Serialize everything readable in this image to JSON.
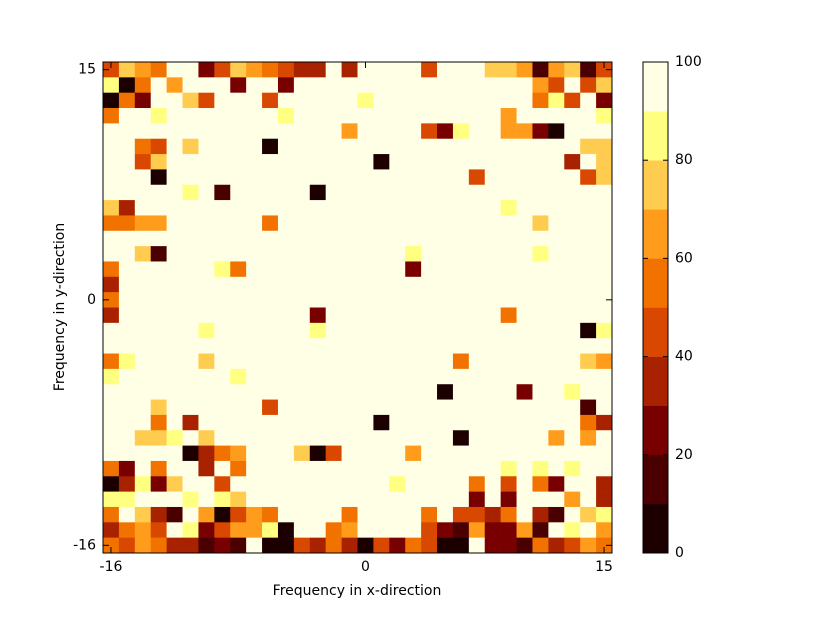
{
  "chart_data": {
    "type": "heatmap",
    "xlabel": "Frequency in x-direction",
    "ylabel": "Frequency in y-direction",
    "x": [
      -16,
      -15,
      -14,
      -13,
      -12,
      -11,
      -10,
      -9,
      -8,
      -7,
      -6,
      -5,
      -4,
      -3,
      -2,
      -1,
      0,
      1,
      2,
      3,
      4,
      5,
      6,
      7,
      8,
      9,
      10,
      11,
      12,
      13,
      14,
      15
    ],
    "y": [
      15,
      14,
      13,
      12,
      11,
      10,
      9,
      8,
      7,
      6,
      5,
      4,
      3,
      2,
      1,
      0,
      -1,
      -2,
      -3,
      -4,
      -5,
      -6,
      -7,
      -8,
      -9,
      -10,
      -11,
      -12,
      -13,
      -14,
      -15,
      -16
    ],
    "xlim": [
      -16.5,
      15.5
    ],
    "ylim": [
      -16.5,
      15.5
    ],
    "xticks": [
      -16,
      0,
      15
    ],
    "yticks": [
      -16,
      0,
      15
    ],
    "zlim": [
      0,
      100
    ],
    "cticks": [
      0,
      20,
      40,
      60,
      80,
      100
    ],
    "colors": [
      "#1c0000",
      "#4a0000",
      "#780000",
      "#a82200",
      "#d84800",
      "#f27200",
      "#ff9c1c",
      "#ffcc50",
      "#ffff80",
      "#ffffe6"
    ],
    "z": [
      [
        45,
        75,
        65,
        55,
        100,
        100,
        25,
        45,
        75,
        65,
        55,
        45,
        35,
        35,
        100,
        35,
        100,
        100,
        100,
        100,
        45,
        100,
        100,
        100,
        70,
        70,
        65,
        15,
        65,
        75,
        15,
        45
      ],
      [
        85,
        5,
        55,
        100,
        60,
        100,
        100,
        100,
        25,
        100,
        100,
        25,
        100,
        100,
        100,
        100,
        100,
        100,
        100,
        100,
        100,
        100,
        100,
        90,
        90,
        100,
        100,
        65,
        45,
        100,
        40,
        75
      ],
      [
        5,
        55,
        25,
        100,
        100,
        75,
        45,
        100,
        100,
        100,
        45,
        100,
        100,
        100,
        100,
        100,
        80,
        100,
        100,
        100,
        100,
        100,
        100,
        100,
        100,
        100,
        100,
        55,
        80,
        45,
        100,
        25
      ],
      [
        55,
        100,
        100,
        80,
        100,
        100,
        100,
        100,
        100,
        100,
        100,
        85,
        100,
        100,
        100,
        100,
        100,
        100,
        100,
        100,
        100,
        100,
        100,
        100,
        100,
        65,
        100,
        100,
        100,
        100,
        100,
        85
      ],
      [
        100,
        90,
        100,
        100,
        100,
        90,
        100,
        100,
        100,
        100,
        100,
        100,
        100,
        100,
        100,
        65,
        100,
        100,
        100,
        100,
        45,
        25,
        80,
        100,
        100,
        65,
        65,
        25,
        5,
        100,
        95,
        100
      ],
      [
        100,
        100,
        55,
        45,
        100,
        75,
        100,
        100,
        100,
        100,
        5,
        100,
        100,
        100,
        100,
        100,
        100,
        90,
        100,
        100,
        100,
        100,
        100,
        100,
        100,
        100,
        100,
        100,
        95,
        90,
        75,
        70
      ],
      [
        100,
        90,
        45,
        75,
        100,
        100,
        100,
        100,
        100,
        100,
        100,
        100,
        100,
        100,
        100,
        100,
        100,
        5,
        100,
        100,
        100,
        100,
        100,
        90,
        100,
        90,
        100,
        100,
        90,
        35,
        100,
        75
      ],
      [
        100,
        100,
        100,
        5,
        100,
        100,
        100,
        100,
        100,
        100,
        100,
        100,
        100,
        100,
        100,
        100,
        100,
        100,
        100,
        100,
        100,
        100,
        90,
        45,
        100,
        100,
        100,
        100,
        100,
        100,
        45,
        75
      ],
      [
        100,
        100,
        100,
        100,
        100,
        80,
        100,
        10,
        100,
        100,
        100,
        100,
        100,
        5,
        95,
        100,
        100,
        100,
        100,
        100,
        100,
        100,
        100,
        100,
        100,
        100,
        100,
        100,
        100,
        100,
        100,
        100
      ],
      [
        75,
        35,
        100,
        100,
        100,
        100,
        100,
        100,
        100,
        100,
        100,
        100,
        100,
        100,
        100,
        100,
        100,
        100,
        100,
        100,
        100,
        100,
        100,
        100,
        100,
        80,
        100,
        100,
        100,
        100,
        100,
        100
      ],
      [
        55,
        55,
        65,
        65,
        100,
        100,
        100,
        100,
        100,
        100,
        55,
        100,
        100,
        100,
        100,
        100,
        100,
        100,
        100,
        100,
        100,
        100,
        100,
        100,
        100,
        100,
        100,
        75,
        100,
        100,
        100,
        95
      ],
      [
        100,
        100,
        100,
        100,
        100,
        100,
        100,
        100,
        100,
        100,
        100,
        100,
        100,
        100,
        100,
        100,
        100,
        100,
        100,
        100,
        100,
        100,
        100,
        100,
        100,
        100,
        100,
        100,
        100,
        100,
        100,
        100
      ],
      [
        100,
        90,
        75,
        15,
        100,
        100,
        100,
        100,
        100,
        100,
        100,
        100,
        100,
        100,
        100,
        100,
        100,
        100,
        100,
        80,
        100,
        100,
        100,
        100,
        100,
        100,
        100,
        80,
        100,
        100,
        100,
        100
      ],
      [
        55,
        100,
        100,
        100,
        100,
        100,
        100,
        85,
        55,
        100,
        100,
        100,
        100,
        100,
        100,
        100,
        100,
        100,
        100,
        25,
        100,
        100,
        100,
        100,
        100,
        100,
        100,
        100,
        100,
        100,
        100,
        100
      ],
      [
        35,
        100,
        100,
        100,
        100,
        100,
        100,
        100,
        100,
        100,
        100,
        100,
        100,
        100,
        100,
        100,
        100,
        100,
        100,
        100,
        100,
        100,
        100,
        100,
        100,
        100,
        100,
        100,
        100,
        100,
        100,
        100
      ],
      [
        55,
        100,
        100,
        100,
        100,
        100,
        100,
        100,
        100,
        100,
        100,
        100,
        100,
        100,
        100,
        100,
        100,
        100,
        100,
        100,
        100,
        100,
        100,
        100,
        100,
        100,
        100,
        100,
        100,
        100,
        100,
        100
      ],
      [
        35,
        100,
        100,
        100,
        100,
        100,
        100,
        100,
        100,
        100,
        100,
        100,
        100,
        25,
        100,
        100,
        100,
        100,
        100,
        100,
        100,
        100,
        100,
        100,
        100,
        55,
        95,
        100,
        100,
        100,
        100,
        100
      ],
      [
        90,
        100,
        100,
        100,
        100,
        100,
        80,
        100,
        100,
        100,
        100,
        100,
        100,
        80,
        100,
        100,
        100,
        100,
        100,
        100,
        100,
        100,
        100,
        100,
        100,
        100,
        100,
        100,
        100,
        100,
        5,
        80
      ],
      [
        100,
        95,
        100,
        100,
        100,
        100,
        100,
        100,
        100,
        100,
        100,
        100,
        100,
        100,
        100,
        100,
        100,
        100,
        100,
        100,
        100,
        100,
        100,
        100,
        100,
        100,
        100,
        100,
        100,
        100,
        100,
        100
      ],
      [
        55,
        80,
        95,
        100,
        100,
        100,
        75,
        100,
        100,
        100,
        100,
        100,
        100,
        100,
        100,
        100,
        100,
        100,
        100,
        100,
        100,
        100,
        55,
        100,
        100,
        100,
        100,
        100,
        100,
        100,
        75,
        65
      ],
      [
        85,
        100,
        100,
        100,
        100,
        100,
        100,
        100,
        85,
        100,
        100,
        100,
        100,
        100,
        100,
        100,
        100,
        100,
        100,
        100,
        100,
        100,
        100,
        100,
        100,
        100,
        100,
        100,
        100,
        100,
        100,
        100
      ],
      [
        100,
        100,
        100,
        100,
        100,
        100,
        100,
        100,
        100,
        100,
        100,
        100,
        100,
        100,
        100,
        100,
        100,
        100,
        100,
        100,
        95,
        5,
        100,
        100,
        100,
        100,
        25,
        100,
        100,
        85,
        100,
        100
      ],
      [
        100,
        100,
        95,
        75,
        100,
        100,
        100,
        100,
        100,
        100,
        45,
        100,
        100,
        100,
        100,
        100,
        100,
        100,
        100,
        100,
        100,
        100,
        100,
        100,
        100,
        100,
        100,
        100,
        100,
        100,
        15,
        100
      ],
      [
        100,
        100,
        90,
        55,
        100,
        35,
        100,
        100,
        95,
        100,
        100,
        95,
        100,
        100,
        100,
        100,
        100,
        5,
        100,
        100,
        100,
        100,
        100,
        100,
        100,
        100,
        100,
        100,
        90,
        100,
        55,
        35
      ],
      [
        100,
        100,
        75,
        75,
        80,
        95,
        75,
        100,
        100,
        100,
        100,
        100,
        100,
        100,
        100,
        100,
        100,
        90,
        100,
        100,
        100,
        100,
        5,
        100,
        100,
        100,
        100,
        100,
        65,
        100,
        65,
        100
      ],
      [
        100,
        100,
        100,
        100,
        100,
        5,
        35,
        55,
        65,
        100,
        95,
        100,
        75,
        5,
        45,
        100,
        100,
        100,
        100,
        65,
        100,
        100,
        100,
        100,
        100,
        100,
        100,
        100,
        100,
        100,
        95,
        100
      ],
      [
        55,
        25,
        100,
        55,
        100,
        100,
        35,
        100,
        55,
        100,
        100,
        100,
        100,
        100,
        100,
        100,
        100,
        100,
        100,
        100,
        100,
        100,
        100,
        100,
        100,
        85,
        100,
        85,
        100,
        85,
        100,
        95
      ],
      [
        5,
        35,
        85,
        25,
        75,
        100,
        95,
        45,
        100,
        95,
        95,
        100,
        100,
        100,
        100,
        100,
        100,
        100,
        80,
        100,
        100,
        100,
        100,
        55,
        100,
        45,
        100,
        55,
        25,
        100,
        100,
        35
      ],
      [
        80,
        80,
        100,
        95,
        95,
        85,
        100,
        80,
        70,
        100,
        90,
        100,
        95,
        100,
        100,
        100,
        100,
        100,
        100,
        100,
        100,
        100,
        100,
        25,
        100,
        25,
        100,
        100,
        100,
        65,
        100,
        35
      ],
      [
        55,
        100,
        75,
        35,
        15,
        100,
        65,
        5,
        45,
        65,
        55,
        100,
        100,
        100,
        100,
        55,
        100,
        100,
        100,
        100,
        55,
        95,
        45,
        45,
        35,
        55,
        100,
        35,
        15,
        100,
        75,
        85
      ],
      [
        35,
        55,
        65,
        45,
        100,
        85,
        25,
        45,
        65,
        65,
        85,
        5,
        100,
        100,
        55,
        65,
        95,
        100,
        100,
        100,
        45,
        25,
        15,
        65,
        25,
        25,
        65,
        15,
        90,
        85,
        90,
        65
      ],
      [
        55,
        45,
        65,
        55,
        35,
        35,
        15,
        25,
        15,
        95,
        5,
        5,
        45,
        35,
        55,
        35,
        5,
        45,
        25,
        55,
        45,
        5,
        5,
        95,
        25,
        25,
        15,
        55,
        35,
        45,
        65,
        55
      ]
    ]
  }
}
